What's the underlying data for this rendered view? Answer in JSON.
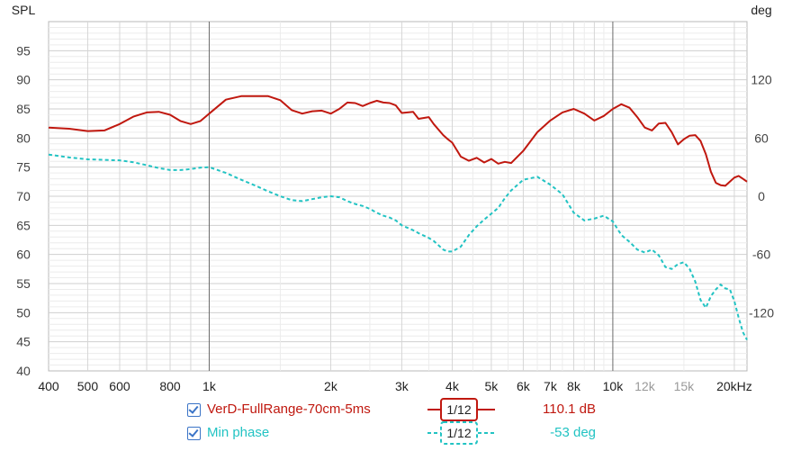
{
  "chart_data": {
    "type": "line",
    "xlabel": "",
    "x_scale": "log",
    "xlim": [
      400,
      21500
    ],
    "ylim_left": [
      40,
      100
    ],
    "ylim_right": [
      -180,
      180
    ],
    "y_left_title": "SPL",
    "y_right_title": "deg",
    "y_left_ticks": [
      "40",
      "45",
      "50",
      "55",
      "60",
      "65",
      "70",
      "75",
      "80",
      "85",
      "90",
      "95"
    ],
    "y_left_tick_values": [
      40,
      45,
      50,
      55,
      60,
      65,
      70,
      75,
      80,
      85,
      90,
      95
    ],
    "y_right_ticks": [
      "120",
      "60",
      "0",
      "-60",
      "-120"
    ],
    "y_right_tick_values": [
      120,
      60,
      0,
      -60,
      -120
    ],
    "x_ticks": [
      {
        "v": 400,
        "label": "400",
        "color": "#222222"
      },
      {
        "v": 500,
        "label": "500",
        "color": "#222222"
      },
      {
        "v": 600,
        "label": "600",
        "color": "#222222"
      },
      {
        "v": 800,
        "label": "800",
        "color": "#222222"
      },
      {
        "v": 1000,
        "label": "1k",
        "color": "#222222"
      },
      {
        "v": 2000,
        "label": "2k",
        "color": "#222222"
      },
      {
        "v": 3000,
        "label": "3k",
        "color": "#222222"
      },
      {
        "v": 4000,
        "label": "4k",
        "color": "#222222"
      },
      {
        "v": 5000,
        "label": "5k",
        "color": "#222222"
      },
      {
        "v": 6000,
        "label": "6k",
        "color": "#222222"
      },
      {
        "v": 7000,
        "label": "7k",
        "color": "#222222"
      },
      {
        "v": 8000,
        "label": "8k",
        "color": "#222222"
      },
      {
        "v": 10000,
        "label": "10k",
        "color": "#222222"
      },
      {
        "v": 12000,
        "label": "12k",
        "color": "#999999"
      },
      {
        "v": 15000,
        "label": "15k",
        "color": "#999999"
      },
      {
        "v": 20000,
        "label": "20kHz",
        "color": "#222222"
      }
    ],
    "series": [
      {
        "name": "VerD-FullRange-70cm-5ms",
        "axis": "left",
        "color": "#c0180f",
        "dash": "solid",
        "smoothing": "1/12",
        "legend_value": "110.1 dB",
        "x": [
          400,
          450,
          500,
          550,
          600,
          650,
          700,
          750,
          800,
          850,
          900,
          950,
          1000,
          1100,
          1200,
          1300,
          1400,
          1500,
          1600,
          1700,
          1800,
          1900,
          2000,
          2100,
          2200,
          2300,
          2400,
          2500,
          2600,
          2700,
          2800,
          2900,
          3000,
          3200,
          3300,
          3500,
          3600,
          3800,
          3900,
          4000,
          4200,
          4400,
          4600,
          4800,
          5000,
          5200,
          5400,
          5600,
          6000,
          6500,
          7000,
          7500,
          8000,
          8500,
          9000,
          9500,
          10000,
          10500,
          11000,
          11500,
          12000,
          12500,
          13000,
          13500,
          14000,
          14500,
          15000,
          15500,
          16000,
          16500,
          17000,
          17500,
          18000,
          18500,
          19000,
          19500,
          20000,
          20500,
          21000,
          21500
        ],
        "y": [
          81.8,
          81.6,
          81.2,
          81.3,
          82.4,
          83.7,
          84.4,
          84.5,
          84.0,
          82.9,
          82.4,
          82.9,
          84.2,
          86.6,
          87.2,
          87.2,
          87.2,
          86.5,
          84.8,
          84.2,
          84.6,
          84.7,
          84.2,
          85.0,
          86.1,
          86.0,
          85.5,
          86.0,
          86.4,
          86.1,
          86.0,
          85.6,
          84.3,
          84.5,
          83.3,
          83.6,
          82.4,
          80.5,
          79.8,
          79.2,
          76.8,
          76.1,
          76.6,
          75.8,
          76.4,
          75.6,
          75.9,
          75.7,
          77.8,
          81.0,
          83.0,
          84.4,
          85.0,
          84.2,
          83.0,
          83.8,
          85.0,
          85.8,
          85.2,
          83.6,
          81.8,
          81.3,
          82.5,
          82.6,
          81.0,
          78.9,
          79.8,
          80.4,
          80.5,
          79.5,
          77.2,
          74.2,
          72.3,
          71.9,
          71.8,
          72.5,
          73.2,
          73.5,
          73.0,
          72.5
        ]
      },
      {
        "name": "Min phase",
        "axis": "right",
        "color": "#22c3c3",
        "dash": "dashed",
        "smoothing": "1/12",
        "legend_value": "-53 deg",
        "x": [
          400,
          450,
          500,
          550,
          600,
          650,
          700,
          750,
          800,
          850,
          900,
          950,
          1000,
          1100,
          1200,
          1300,
          1400,
          1500,
          1600,
          1700,
          1800,
          1900,
          2000,
          2100,
          2200,
          2300,
          2400,
          2500,
          2600,
          2700,
          2800,
          2900,
          3000,
          3200,
          3300,
          3500,
          3600,
          3800,
          3900,
          4000,
          4200,
          4400,
          4600,
          4800,
          5000,
          5200,
          5400,
          5600,
          6000,
          6500,
          7000,
          7500,
          8000,
          8500,
          9000,
          9500,
          10000,
          10500,
          11000,
          11500,
          12000,
          12500,
          13000,
          13500,
          14000,
          14500,
          15000,
          15500,
          16000,
          16500,
          17000,
          17500,
          18000,
          18500,
          19000,
          19500,
          20000,
          20500,
          21000,
          21500
        ],
        "y": [
          43,
          40,
          38,
          37.5,
          37,
          35,
          32,
          29,
          27,
          27,
          28,
          29.5,
          30,
          24,
          17,
          11,
          5,
          0,
          -4,
          -5,
          -3,
          -1,
          0,
          -1,
          -5,
          -8,
          -10,
          -13,
          -17,
          -20,
          -22,
          -25,
          -30,
          -35,
          -38,
          -43,
          -46,
          -55,
          -57,
          -57,
          -52,
          -40,
          -31,
          -24,
          -18,
          -12,
          -2,
          6,
          17,
          20,
          12,
          2,
          -17,
          -25,
          -23,
          -20,
          -26,
          -40,
          -47,
          -55,
          -58,
          -55,
          -61,
          -73,
          -75,
          -70,
          -68,
          -75,
          -88,
          -107,
          -115,
          -103,
          -96,
          -91,
          -95,
          -96,
          -108,
          -125,
          -140,
          -148
        ]
      }
    ]
  }
}
